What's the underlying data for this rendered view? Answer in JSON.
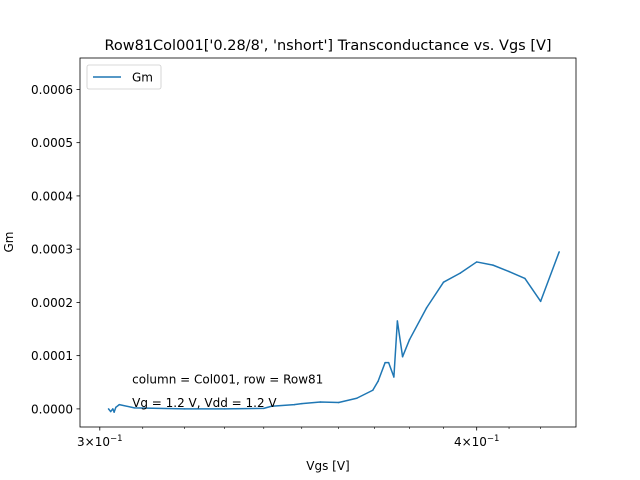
{
  "chart_data": {
    "type": "line",
    "title": "Row81Col001['0.28/8', 'nshort'] Transconductance vs. Vgs [V]",
    "xlabel": "Vgs [V]",
    "ylabel": "Gm",
    "xscale": "log",
    "xlim": [
      0.2955,
      0.4315
    ],
    "ylim": [
      -3.4e-05,
      0.000659
    ],
    "xticks": [
      {
        "value": 0.3,
        "base": "3×10",
        "exp": "−1"
      },
      {
        "value": 0.4,
        "base": "4×10",
        "exp": "−1"
      }
    ],
    "yticks": [
      {
        "value": 0,
        "label": "0.0000"
      },
      {
        "value": 0.0001,
        "label": "0.0001"
      },
      {
        "value": 0.0002,
        "label": "0.0002"
      },
      {
        "value": 0.0003,
        "label": "0.0003"
      },
      {
        "value": 0.0004,
        "label": "0.0004"
      },
      {
        "value": 0.0005,
        "label": "0.0005"
      },
      {
        "value": 0.0006,
        "label": "0.0006"
      }
    ],
    "legend": {
      "position": "upper-left"
    },
    "series": [
      {
        "name": "Gm",
        "color": "#1f77b4",
        "x": [
          0.302,
          0.3025,
          0.303,
          0.3033,
          0.3037,
          0.3045,
          0.308,
          0.32,
          0.33,
          0.34,
          0.342,
          0.348,
          0.35,
          0.355,
          0.36,
          0.365,
          0.3695,
          0.371,
          0.373,
          0.374,
          0.3755,
          0.3765,
          0.378,
          0.38,
          0.385,
          0.39,
          0.395,
          0.4,
          0.405,
          0.41,
          0.415,
          0.42,
          0.426
        ],
        "y": [
          0.0,
          -5e-06,
          0.0,
          -6e-06,
          3e-06,
          8e-06,
          2e-06,
          0.0,
          0.0,
          1e-06,
          5e-06,
          8e-06,
          1e-05,
          1.3e-05,
          1.2e-05,
          2e-05,
          3.5e-05,
          5.2e-05,
          8.7e-05,
          8.7e-05,
          6e-05,
          0.000165,
          9.8e-05,
          0.00013,
          0.00019,
          0.000238,
          0.000255,
          0.000276,
          0.00027,
          0.000258,
          0.000245,
          0.000202,
          0.000295
        ]
      }
    ],
    "annotations": [
      {
        "text": "column = Col001, row = Row81",
        "x": 0.3075,
        "y": 4.8e-05
      },
      {
        "text": "Vg = 1.2 V, Vdd = 1.2 V",
        "x": 0.3075,
        "y": 4e-06
      }
    ]
  }
}
